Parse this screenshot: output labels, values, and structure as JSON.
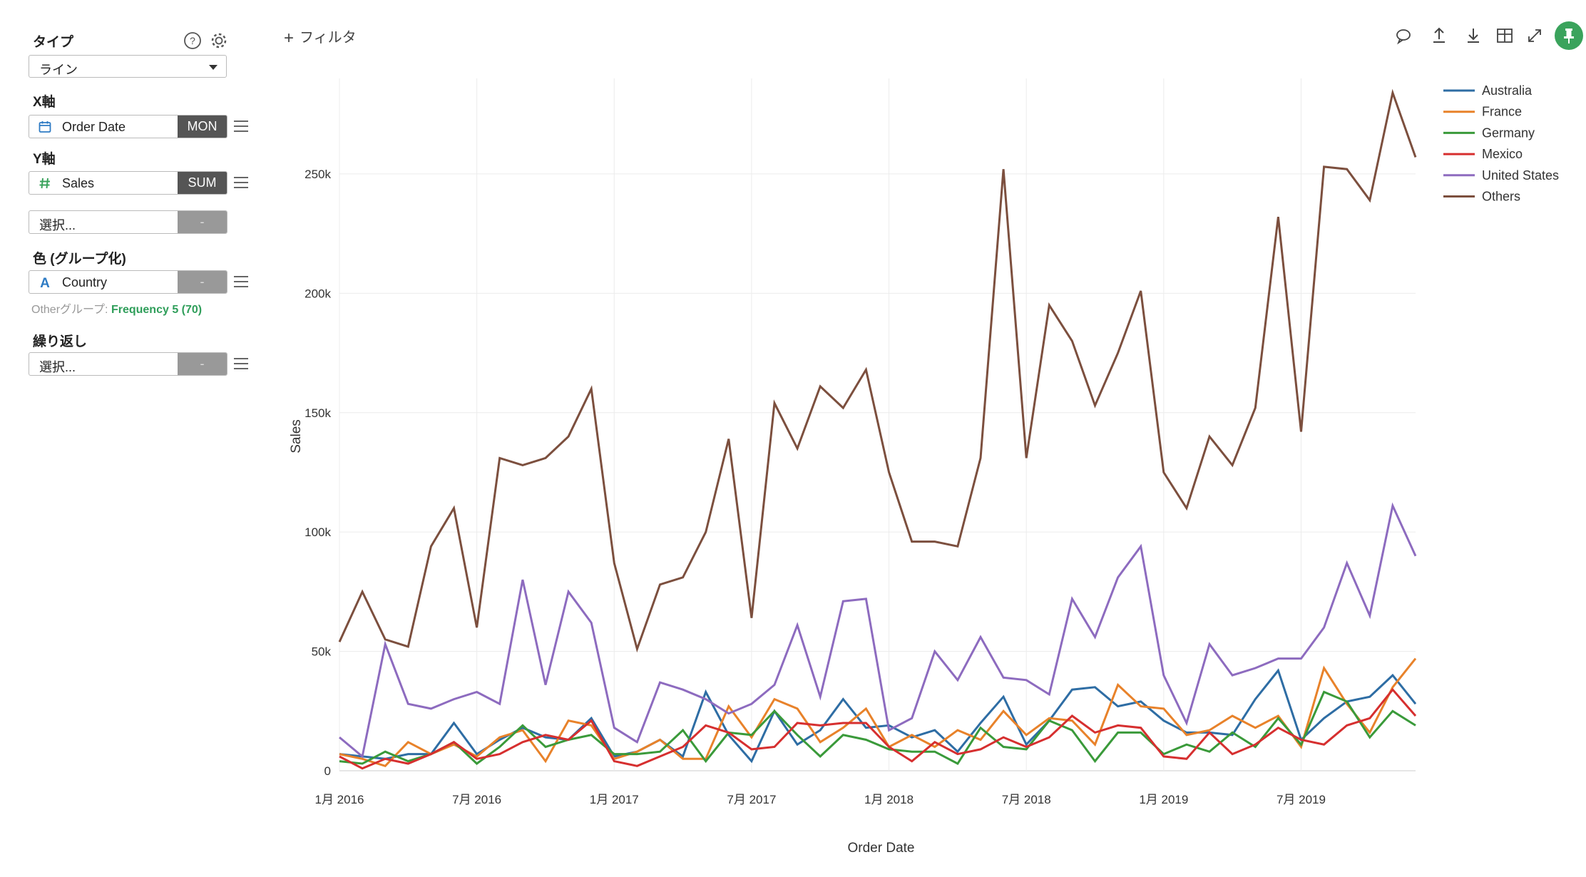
{
  "sidebar": {
    "type_label": "タイプ",
    "type_value": "ライン",
    "x_label": "X軸",
    "x_field": "Order Date",
    "x_agg": "MON",
    "y_label": "Y軸",
    "y_field": "Sales",
    "y_agg": "SUM",
    "y2_placeholder": "選択...",
    "y2_agg": "-",
    "color_label": "色 (グループ化)",
    "color_field": "Country",
    "color_agg": "-",
    "other_group_prefix": "Otherグループ: ",
    "other_group_value": "Frequency 5 (70)",
    "repeat_label": "繰り返し",
    "repeat_placeholder": "選択...",
    "repeat_agg": "-",
    "icons": {
      "help": "help-circle-icon",
      "settings": "gear-icon",
      "calendar": "calendar-icon",
      "number": "hash-icon",
      "text": "text-a-icon"
    }
  },
  "toolbar": {
    "filter_label": "フィルタ",
    "icons": [
      "comment-icon",
      "upload-icon",
      "download-icon",
      "table-icon",
      "expand-icon",
      "pin-icon"
    ]
  },
  "chart_data": {
    "type": "line",
    "xlabel": "Order Date",
    "ylabel": "Sales",
    "ylim": [
      0,
      290000
    ],
    "yticks": [
      0,
      50000,
      100000,
      150000,
      200000,
      250000
    ],
    "ytick_labels": [
      "0",
      "50k",
      "100k",
      "150k",
      "200k",
      "250k"
    ],
    "xtick_labels": [
      "1月 2016",
      "7月 2016",
      "1月 2017",
      "7月 2017",
      "1月 2018",
      "7月 2018",
      "1月 2019",
      "7月 2019"
    ],
    "x": [
      "2016-01",
      "2016-02",
      "2016-03",
      "2016-04",
      "2016-05",
      "2016-06",
      "2016-07",
      "2016-08",
      "2016-09",
      "2016-10",
      "2016-11",
      "2016-12",
      "2017-01",
      "2017-02",
      "2017-03",
      "2017-04",
      "2017-05",
      "2017-06",
      "2017-07",
      "2017-08",
      "2017-09",
      "2017-10",
      "2017-11",
      "2017-12",
      "2018-01",
      "2018-02",
      "2018-03",
      "2018-04",
      "2018-05",
      "2018-06",
      "2018-07",
      "2018-08",
      "2018-09",
      "2018-10",
      "2018-11",
      "2018-12",
      "2019-01",
      "2019-02",
      "2019-03",
      "2019-04",
      "2019-05",
      "2019-06",
      "2019-07",
      "2019-08",
      "2019-09",
      "2019-10",
      "2019-11",
      "2019-12"
    ],
    "grid": true,
    "legend_position": "top-right",
    "series": [
      {
        "name": "Australia",
        "color": "#2e6da4",
        "values": [
          7000,
          6000,
          5000,
          7000,
          7000,
          20000,
          7000,
          13000,
          18000,
          14000,
          13000,
          22000,
          6000,
          8000,
          13000,
          6000,
          33000,
          15000,
          4000,
          25000,
          11000,
          17000,
          30000,
          18000,
          19000,
          14000,
          17000,
          8000,
          20000,
          31000,
          11000,
          21000,
          34000,
          35000,
          27000,
          29000,
          21000,
          16000,
          16000,
          15000,
          30000,
          42000,
          13000,
          22000,
          29000,
          31000,
          40000,
          28000
        ]
      },
      {
        "name": "France",
        "color": "#e8822a",
        "values": [
          7000,
          5000,
          2000,
          12000,
          7000,
          11000,
          6000,
          14000,
          17000,
          4000,
          21000,
          19000,
          5000,
          8000,
          13000,
          5000,
          5000,
          27000,
          14000,
          30000,
          26000,
          12000,
          18000,
          26000,
          10000,
          15000,
          10000,
          17000,
          13000,
          25000,
          15000,
          22000,
          21000,
          11000,
          36000,
          27000,
          26000,
          15000,
          17000,
          23000,
          18000,
          23000,
          10000,
          43000,
          28000,
          16000,
          35000,
          47000
        ]
      },
      {
        "name": "Germany",
        "color": "#3a9a3a",
        "values": [
          4000,
          3000,
          8000,
          4000,
          7000,
          12000,
          3000,
          10000,
          19000,
          10000,
          13000,
          15000,
          7000,
          7000,
          8000,
          17000,
          4000,
          16000,
          15000,
          25000,
          15000,
          6000,
          15000,
          13000,
          9000,
          8000,
          8000,
          3000,
          18000,
          10000,
          9000,
          21000,
          17000,
          4000,
          16000,
          16000,
          7000,
          11000,
          8000,
          16000,
          10000,
          22000,
          11000,
          33000,
          29000,
          14000,
          25000,
          19000
        ]
      },
      {
        "name": "Mexico",
        "color": "#d62f2f",
        "values": [
          6000,
          1000,
          5000,
          3000,
          7000,
          12000,
          5000,
          7000,
          12000,
          15000,
          13000,
          21000,
          4000,
          2000,
          6000,
          10000,
          19000,
          16000,
          9000,
          10000,
          20000,
          19000,
          20000,
          20000,
          10000,
          4000,
          12000,
          7000,
          9000,
          14000,
          10000,
          14000,
          23000,
          16000,
          19000,
          18000,
          6000,
          5000,
          16000,
          7000,
          11000,
          18000,
          13000,
          11000,
          19000,
          22000,
          34000,
          23000
        ]
      },
      {
        "name": "United States",
        "color": "#8d6bbf",
        "values": [
          14000,
          6000,
          53000,
          28000,
          26000,
          30000,
          33000,
          28000,
          80000,
          36000,
          75000,
          62000,
          18000,
          12000,
          37000,
          34000,
          30000,
          24000,
          28000,
          36000,
          61000,
          31000,
          71000,
          72000,
          17000,
          22000,
          50000,
          38000,
          56000,
          39000,
          38000,
          32000,
          72000,
          56000,
          81000,
          94000,
          40000,
          20000,
          53000,
          40000,
          43000,
          47000,
          47000,
          60000,
          87000,
          65000,
          111000,
          90000
        ]
      },
      {
        "name": "Others",
        "color": "#7c4f3e",
        "values": [
          54000,
          75000,
          55000,
          52000,
          94000,
          110000,
          60000,
          131000,
          128000,
          131000,
          140000,
          160000,
          87000,
          51000,
          78000,
          81000,
          100000,
          139000,
          64000,
          154000,
          135000,
          161000,
          152000,
          168000,
          125000,
          96000,
          96000,
          94000,
          131000,
          252000,
          131000,
          195000,
          180000,
          153000,
          175000,
          201000,
          125000,
          110000,
          140000,
          128000,
          152000,
          232000,
          142000,
          253000,
          252000,
          239000,
          284000,
          257000
        ]
      }
    ]
  }
}
